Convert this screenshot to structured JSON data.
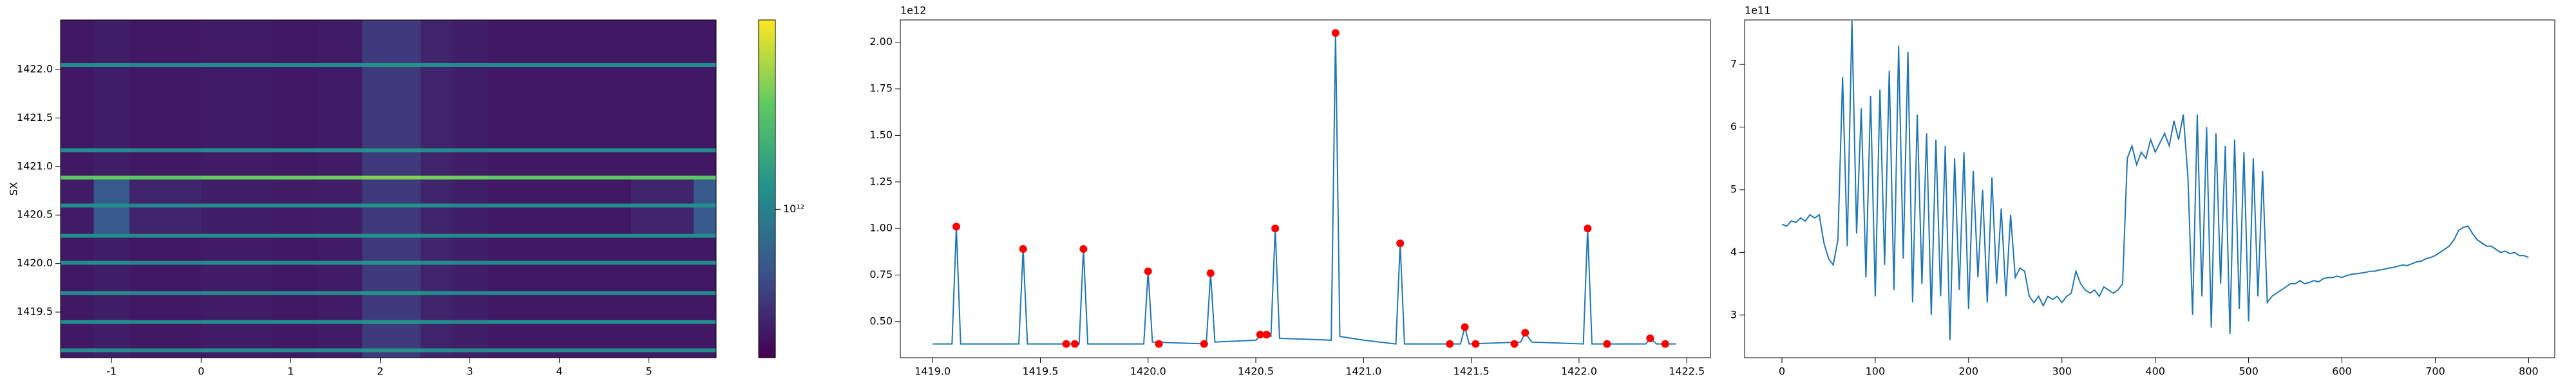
{
  "chart_data": [
    {
      "type": "heatmap",
      "ylabel": "SX",
      "x_edges": [
        -1.57,
        -1.2,
        -0.8,
        0,
        0.8,
        1.3,
        1.8,
        2.45,
        2.8,
        3.2,
        4.8,
        5.5,
        5.75
      ],
      "y_edges": [
        1419.03,
        1419.09,
        1419.13,
        1419.38,
        1419.42,
        1419.68,
        1419.72,
        1419.99,
        1420.03,
        1420.27,
        1420.31,
        1420.58,
        1420.62,
        1420.87,
        1420.91,
        1421.15,
        1421.19,
        1422.03,
        1422.07,
        1422.51
      ],
      "z": [
        [
          260000000000.0,
          280000000000.0,
          260000000000.0,
          270000000000.0,
          260000000000.0,
          270000000000.0,
          380000000000.0,
          300000000000.0,
          280000000000.0,
          260000000000.0,
          260000000000.0,
          260000000000.0
        ],
        [
          1200000000000.0,
          1200000000000.0,
          1100000000000.0,
          1200000000000.0,
          1200000000000.0,
          1200000000000.0,
          1300000000000.0,
          1200000000000.0,
          1100000000000.0,
          1200000000000.0,
          1200000000000.0,
          1200000000000.0
        ],
        [
          260000000000.0,
          280000000000.0,
          260000000000.0,
          270000000000.0,
          260000000000.0,
          270000000000.0,
          380000000000.0,
          300000000000.0,
          280000000000.0,
          260000000000.0,
          260000000000.0,
          260000000000.0
        ],
        [
          1200000000000.0,
          1200000000000.0,
          1100000000000.0,
          1200000000000.0,
          1200000000000.0,
          1200000000000.0,
          1300000000000.0,
          1200000000000.0,
          1100000000000.0,
          1200000000000.0,
          1200000000000.0,
          1200000000000.0
        ],
        [
          260000000000.0,
          280000000000.0,
          260000000000.0,
          270000000000.0,
          260000000000.0,
          270000000000.0,
          380000000000.0,
          300000000000.0,
          280000000000.0,
          260000000000.0,
          260000000000.0,
          260000000000.0
        ],
        [
          1200000000000.0,
          1200000000000.0,
          1100000000000.0,
          1200000000000.0,
          1200000000000.0,
          1200000000000.0,
          1300000000000.0,
          1200000000000.0,
          1100000000000.0,
          1200000000000.0,
          1200000000000.0,
          1200000000000.0
        ],
        [
          260000000000.0,
          280000000000.0,
          260000000000.0,
          270000000000.0,
          260000000000.0,
          270000000000.0,
          380000000000.0,
          300000000000.0,
          280000000000.0,
          260000000000.0,
          260000000000.0,
          260000000000.0
        ],
        [
          1200000000000.0,
          1200000000000.0,
          1100000000000.0,
          1200000000000.0,
          1200000000000.0,
          1200000000000.0,
          1300000000000.0,
          1200000000000.0,
          1100000000000.0,
          1200000000000.0,
          1200000000000.0,
          1200000000000.0
        ],
        [
          260000000000.0,
          280000000000.0,
          260000000000.0,
          270000000000.0,
          260000000000.0,
          270000000000.0,
          380000000000.0,
          300000000000.0,
          280000000000.0,
          260000000000.0,
          260000000000.0,
          260000000000.0
        ],
        [
          1200000000000.0,
          1200000000000.0,
          1100000000000.0,
          1200000000000.0,
          1200000000000.0,
          1200000000000.0,
          1300000000000.0,
          1200000000000.0,
          1100000000000.0,
          1200000000000.0,
          1200000000000.0,
          1200000000000.0
        ],
        [
          270000000000.0,
          550000000000.0,
          300000000000.0,
          280000000000.0,
          270000000000.0,
          280000000000.0,
          380000000000.0,
          300000000000.0,
          280000000000.0,
          260000000000.0,
          300000000000.0,
          550000000000.0
        ],
        [
          1200000000000.0,
          1200000000000.0,
          1100000000000.0,
          1200000000000.0,
          1200000000000.0,
          1200000000000.0,
          1300000000000.0,
          1200000000000.0,
          1100000000000.0,
          1200000000000.0,
          1200000000000.0,
          1200000000000.0
        ],
        [
          270000000000.0,
          550000000000.0,
          300000000000.0,
          280000000000.0,
          270000000000.0,
          280000000000.0,
          380000000000.0,
          300000000000.0,
          280000000000.0,
          260000000000.0,
          300000000000.0,
          550000000000.0
        ],
        [
          3000000000000.0,
          3200000000000.0,
          3000000000000.0,
          3200000000000.0,
          3300000000000.0,
          3400000000000.0,
          3800000000000.0,
          3500000000000.0,
          3300000000000.0,
          3000000000000.0,
          3100000000000.0,
          3000000000000.0
        ],
        [
          260000000000.0,
          280000000000.0,
          260000000000.0,
          270000000000.0,
          260000000000.0,
          270000000000.0,
          380000000000.0,
          300000000000.0,
          280000000000.0,
          260000000000.0,
          260000000000.0,
          260000000000.0
        ],
        [
          1200000000000.0,
          1200000000000.0,
          1100000000000.0,
          1200000000000.0,
          1200000000000.0,
          1200000000000.0,
          1300000000000.0,
          1200000000000.0,
          1100000000000.0,
          1200000000000.0,
          1200000000000.0,
          1200000000000.0
        ],
        [
          260000000000.0,
          280000000000.0,
          260000000000.0,
          270000000000.0,
          260000000000.0,
          270000000000.0,
          380000000000.0,
          300000000000.0,
          280000000000.0,
          260000000000.0,
          260000000000.0,
          260000000000.0
        ],
        [
          1200000000000.0,
          1200000000000.0,
          1100000000000.0,
          1200000000000.0,
          1200000000000.0,
          1200000000000.0,
          1300000000000.0,
          1200000000000.0,
          1100000000000.0,
          1200000000000.0,
          1200000000000.0,
          1200000000000.0
        ],
        [
          260000000000.0,
          280000000000.0,
          260000000000.0,
          270000000000.0,
          260000000000.0,
          270000000000.0,
          380000000000.0,
          300000000000.0,
          280000000000.0,
          260000000000.0,
          260000000000.0,
          260000000000.0
        ]
      ],
      "colormap": "viridis",
      "color_log": true,
      "clim": [
        200000000000.0,
        7800000000000.0
      ],
      "cticks": [
        {
          "value": 1000000000000.0,
          "label": "10¹²"
        }
      ],
      "xlim": [
        -1.57,
        5.75
      ],
      "xticks": [
        -1,
        0,
        1,
        2,
        3,
        4,
        5
      ],
      "ylim": [
        1419.03,
        1422.51
      ],
      "yticks": [
        {
          "value": 1419.5,
          "label": "1419.5"
        },
        {
          "value": 1420.0,
          "label": "1420.0"
        },
        {
          "value": 1420.5,
          "label": "1420.5"
        },
        {
          "value": 1421.0,
          "label": "1421.0"
        },
        {
          "value": 1421.5,
          "label": "1421.5"
        },
        {
          "value": 1422.0,
          "label": "1422.0"
        }
      ]
    },
    {
      "type": "line",
      "y_offset_label": "1e12",
      "series": [
        {
          "style": "line",
          "color": "#1f77b4",
          "x": [
            1419.0,
            1419.09,
            1419.11,
            1419.13,
            1419.4,
            1419.42,
            1419.44,
            1419.68,
            1419.7,
            1419.72,
            1419.98,
            1420.0,
            1420.02,
            1420.27,
            1420.29,
            1420.31,
            1420.5,
            1420.53,
            1420.55,
            1420.57,
            1420.59,
            1420.61,
            1420.85,
            1420.87,
            1420.89,
            1421.0,
            1421.15,
            1421.17,
            1421.19,
            1421.45,
            1421.47,
            1421.49,
            1421.73,
            1421.75,
            1421.78,
            1422.02,
            1422.04,
            1422.06,
            1422.31,
            1422.33,
            1422.36,
            1422.45
          ],
          "values": [
            0.38,
            0.38,
            1.01,
            0.38,
            0.38,
            0.89,
            0.38,
            0.38,
            0.89,
            0.38,
            0.38,
            0.77,
            0.39,
            0.38,
            0.76,
            0.39,
            0.4,
            0.43,
            0.43,
            0.42,
            1.0,
            0.41,
            0.4,
            2.05,
            0.42,
            0.4,
            0.38,
            0.92,
            0.38,
            0.38,
            0.47,
            0.38,
            0.39,
            0.44,
            0.39,
            0.38,
            1.0,
            0.38,
            0.38,
            0.41,
            0.38,
            0.38
          ]
        },
        {
          "style": "markers",
          "color": "#ff0000",
          "x": [
            1419.11,
            1419.42,
            1419.62,
            1419.66,
            1419.7,
            1420.0,
            1420.05,
            1420.26,
            1420.29,
            1420.52,
            1420.55,
            1420.59,
            1420.87,
            1421.17,
            1421.4,
            1421.47,
            1421.52,
            1421.7,
            1421.75,
            1422.04,
            1422.13,
            1422.33,
            1422.4
          ],
          "values": [
            1.01,
            0.89,
            0.38,
            0.38,
            0.89,
            0.77,
            0.38,
            0.38,
            0.76,
            0.43,
            0.43,
            1.0,
            2.05,
            0.92,
            0.38,
            0.47,
            0.38,
            0.38,
            0.44,
            1.0,
            0.38,
            0.41,
            0.38
          ]
        }
      ],
      "xlim": [
        1418.85,
        1422.61
      ],
      "xticks": [
        {
          "value": 1419.0,
          "label": "1419.0"
        },
        {
          "value": 1419.5,
          "label": "1419.5"
        },
        {
          "value": 1420.0,
          "label": "1420.0"
        },
        {
          "value": 1420.5,
          "label": "1420.5"
        },
        {
          "value": 1421.0,
          "label": "1421.0"
        },
        {
          "value": 1421.5,
          "label": "1421.5"
        },
        {
          "value": 1422.0,
          "label": "1422.0"
        },
        {
          "value": 1422.5,
          "label": "1422.5"
        }
      ],
      "ylim": [
        0.306,
        2.12
      ],
      "yticks": [
        {
          "value": 0.5,
          "label": "0.50"
        },
        {
          "value": 0.75,
          "label": "0.75"
        },
        {
          "value": 1.0,
          "label": "1.00"
        },
        {
          "value": 1.25,
          "label": "1.25"
        },
        {
          "value": 1.5,
          "label": "1.50"
        },
        {
          "value": 1.75,
          "label": "1.75"
        },
        {
          "value": 2.0,
          "label": "2.00"
        }
      ]
    },
    {
      "type": "line",
      "y_offset_label": "1e11",
      "series": [
        {
          "style": "line",
          "color": "#1f77b4",
          "x": [
            0,
            5,
            10,
            15,
            20,
            25,
            30,
            35,
            40,
            45,
            50,
            55,
            60,
            65,
            70,
            75,
            80,
            85,
            90,
            95,
            100,
            105,
            110,
            115,
            120,
            125,
            130,
            135,
            140,
            145,
            150,
            155,
            160,
            165,
            170,
            175,
            180,
            185,
            190,
            195,
            200,
            205,
            210,
            215,
            220,
            225,
            230,
            235,
            240,
            245,
            250,
            255,
            260,
            265,
            270,
            275,
            280,
            285,
            290,
            295,
            300,
            305,
            310,
            315,
            320,
            325,
            330,
            335,
            340,
            345,
            350,
            355,
            360,
            365,
            370,
            375,
            380,
            385,
            390,
            395,
            400,
            405,
            410,
            415,
            420,
            425,
            430,
            435,
            440,
            445,
            450,
            455,
            460,
            465,
            470,
            475,
            480,
            485,
            490,
            495,
            500,
            505,
            510,
            515,
            520,
            525,
            530,
            535,
            540,
            545,
            550,
            555,
            560,
            565,
            570,
            575,
            580,
            585,
            590,
            595,
            600,
            605,
            610,
            615,
            620,
            625,
            630,
            635,
            640,
            645,
            650,
            655,
            660,
            665,
            670,
            675,
            680,
            685,
            690,
            695,
            700,
            705,
            710,
            715,
            720,
            725,
            730,
            735,
            740,
            745,
            750,
            755,
            760,
            765,
            770,
            775,
            780,
            785,
            790,
            795,
            800
          ],
          "values": [
            4.45,
            4.42,
            4.5,
            4.48,
            4.55,
            4.5,
            4.6,
            4.55,
            4.6,
            4.15,
            3.9,
            3.8,
            4.2,
            6.8,
            4.1,
            7.7,
            4.3,
            6.3,
            3.6,
            6.5,
            3.3,
            6.6,
            3.8,
            6.9,
            3.4,
            7.3,
            3.9,
            7.2,
            3.2,
            6.2,
            3.5,
            5.9,
            3.0,
            5.8,
            3.3,
            5.7,
            2.6,
            5.5,
            3.4,
            5.6,
            3.1,
            5.3,
            3.6,
            5.0,
            3.2,
            5.2,
            3.5,
            4.7,
            3.3,
            4.6,
            3.6,
            3.75,
            3.7,
            3.3,
            3.2,
            3.3,
            3.15,
            3.3,
            3.25,
            3.3,
            3.2,
            3.3,
            3.35,
            3.7,
            3.5,
            3.4,
            3.35,
            3.4,
            3.3,
            3.45,
            3.4,
            3.35,
            3.4,
            3.5,
            5.5,
            5.7,
            5.4,
            5.6,
            5.5,
            5.8,
            5.6,
            5.75,
            5.9,
            5.7,
            6.1,
            5.8,
            6.2,
            5.2,
            3.0,
            6.2,
            3.3,
            6.0,
            2.8,
            5.9,
            3.5,
            5.7,
            2.7,
            5.8,
            3.1,
            5.6,
            2.9,
            5.5,
            3.3,
            5.3,
            3.2,
            3.3,
            3.35,
            3.4,
            3.45,
            3.5,
            3.5,
            3.55,
            3.5,
            3.52,
            3.55,
            3.53,
            3.58,
            3.6,
            3.6,
            3.62,
            3.6,
            3.63,
            3.65,
            3.66,
            3.67,
            3.68,
            3.7,
            3.7,
            3.72,
            3.73,
            3.75,
            3.76,
            3.78,
            3.8,
            3.79,
            3.82,
            3.85,
            3.86,
            3.9,
            3.92,
            3.95,
            4.0,
            4.05,
            4.1,
            4.2,
            4.35,
            4.4,
            4.42,
            4.3,
            4.2,
            4.15,
            4.1,
            4.1,
            4.05,
            4.0,
            4.02,
            3.98,
            4.0,
            3.95,
            3.95,
            3.92
          ]
        }
      ],
      "xlim": [
        -40,
        828
      ],
      "xticks": [
        0,
        100,
        200,
        300,
        400,
        500,
        600,
        700,
        800
      ],
      "ylim": [
        2.32,
        7.71
      ],
      "yticks": [
        3,
        4,
        5,
        6,
        7
      ]
    }
  ]
}
